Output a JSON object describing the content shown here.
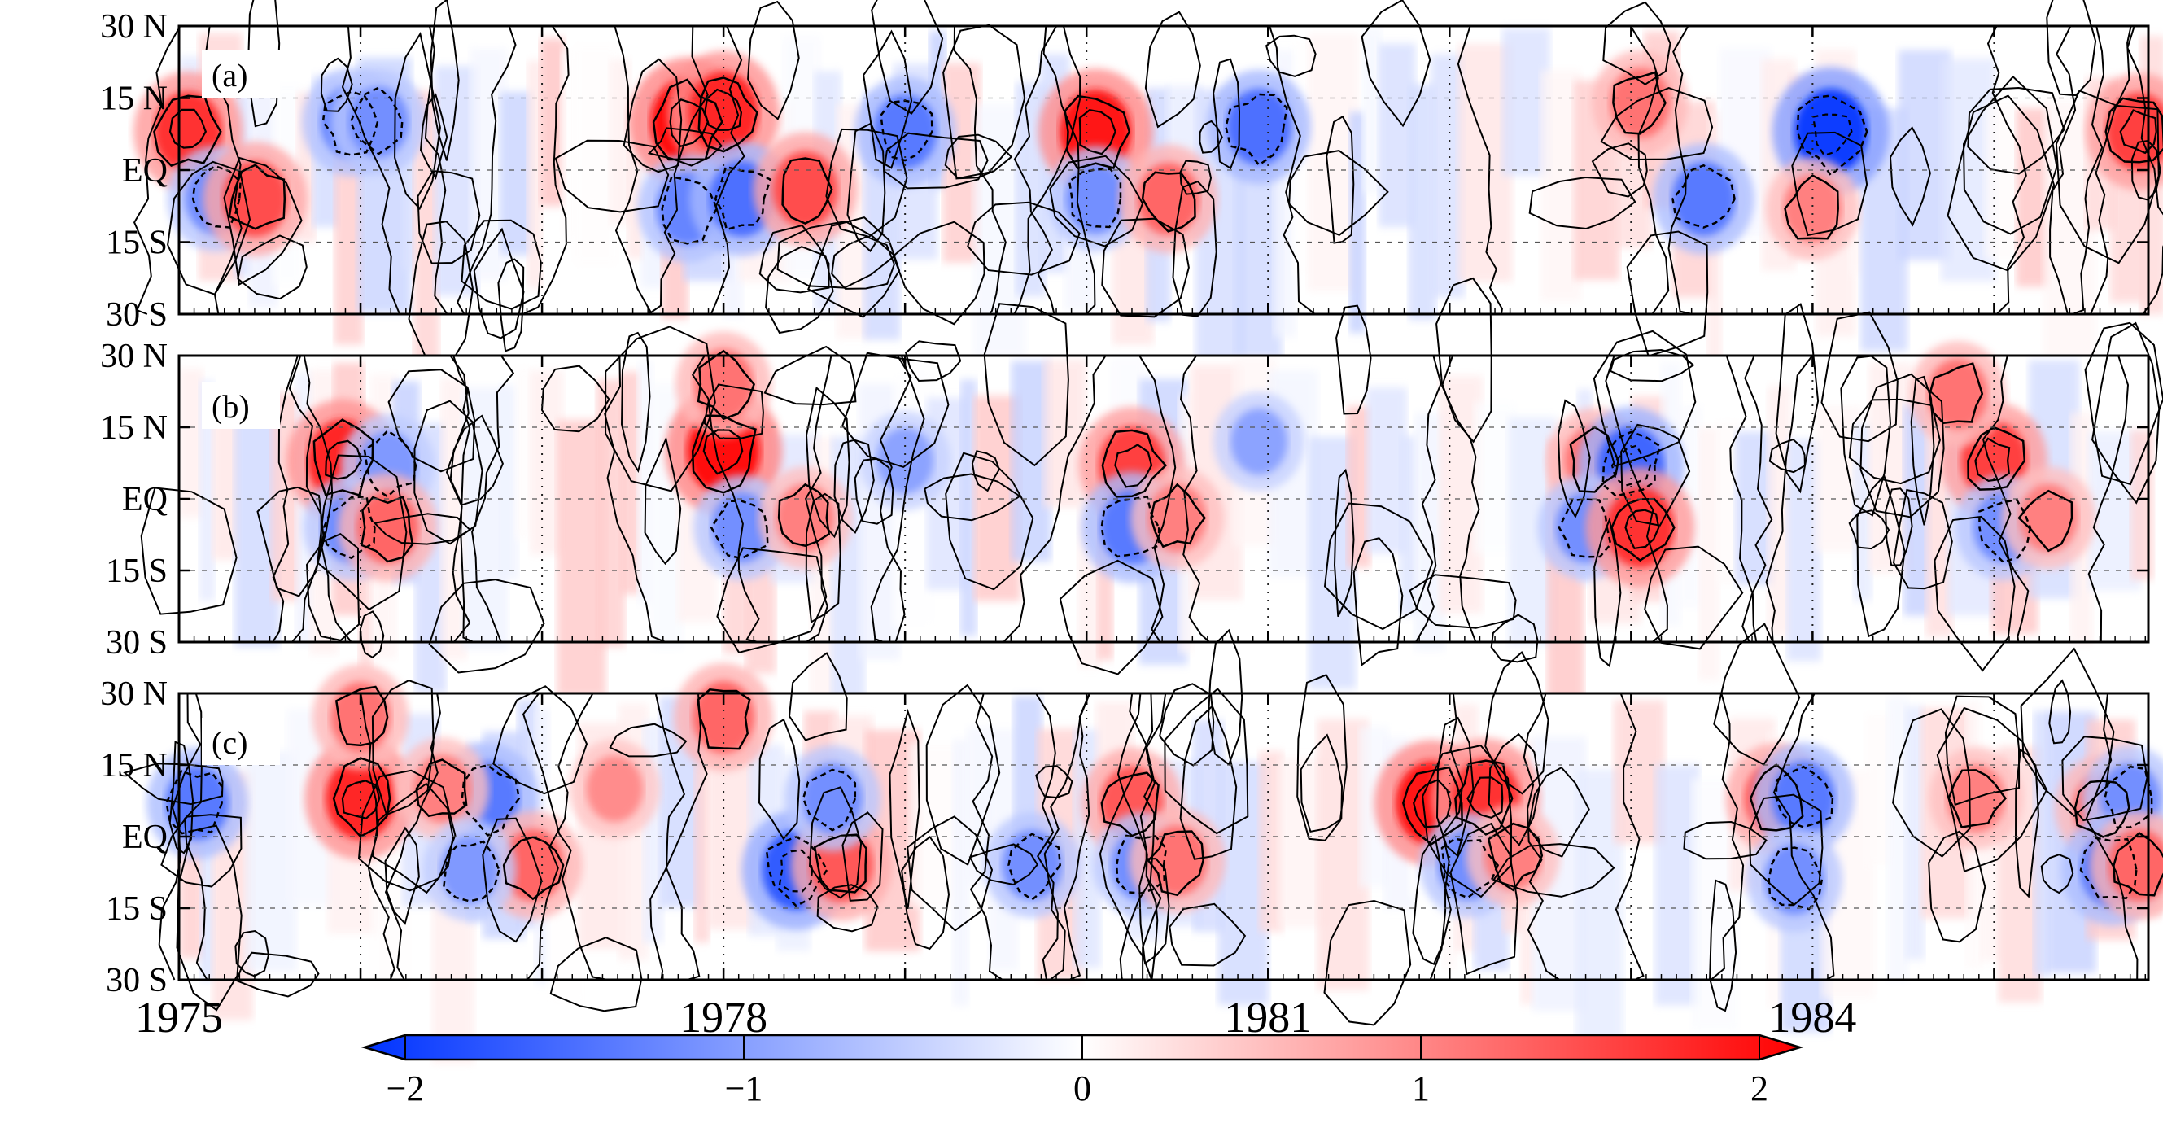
{
  "chart_data": [
    {
      "type": "heatmap",
      "panel_label": "(a)",
      "y_tick_labels": [
        "30 N",
        "15 N",
        "EQ",
        "15 S",
        "30 S"
      ],
      "ylim": [
        -30,
        30
      ],
      "xlim": [
        1975,
        1985.85
      ],
      "anomaly_events": [
        {
          "year": 1975.05,
          "lat": 8,
          "value": 1.6
        },
        {
          "year": 1975.2,
          "lat": -6,
          "value": -1.1
        },
        {
          "year": 1975.42,
          "lat": -6,
          "value": 1.4
        },
        {
          "year": 1975.95,
          "lat": 10,
          "value": -1.2
        },
        {
          "year": 1976.1,
          "lat": 10,
          "value": -1.1
        },
        {
          "year": 1977.8,
          "lat": 10,
          "value": 1.9
        },
        {
          "year": 1978.0,
          "lat": 12,
          "value": 1.7
        },
        {
          "year": 1977.8,
          "lat": -8,
          "value": -1.2
        },
        {
          "year": 1978.1,
          "lat": -6,
          "value": -1.4
        },
        {
          "year": 1978.45,
          "lat": -4,
          "value": 1.4
        },
        {
          "year": 1979.0,
          "lat": 8,
          "value": -1.3
        },
        {
          "year": 1980.05,
          "lat": 8,
          "value": 1.8
        },
        {
          "year": 1980.05,
          "lat": -6,
          "value": -1.1
        },
        {
          "year": 1980.45,
          "lat": -6,
          "value": 1.2
        },
        {
          "year": 1980.95,
          "lat": 9,
          "value": -1.4
        },
        {
          "year": 1983.05,
          "lat": 14,
          "value": 1.1
        },
        {
          "year": 1983.4,
          "lat": -6,
          "value": -1.3
        },
        {
          "year": 1984.1,
          "lat": 8,
          "value": -1.9
        },
        {
          "year": 1984.0,
          "lat": -8,
          "value": 1.0
        },
        {
          "year": 1985.8,
          "lat": 8,
          "value": 1.5
        }
      ]
    },
    {
      "type": "heatmap",
      "panel_label": "(b)",
      "y_tick_labels": [
        "30 N",
        "15 N",
        "EQ",
        "15 S",
        "30 S"
      ],
      "ylim": [
        -30,
        30
      ],
      "xlim": [
        1975,
        1985.85
      ],
      "anomaly_events": [
        {
          "year": 1975.9,
          "lat": 8,
          "value": 1.7
        },
        {
          "year": 1976.15,
          "lat": 7,
          "value": -1.0
        },
        {
          "year": 1975.95,
          "lat": -6,
          "value": -1.1
        },
        {
          "year": 1976.15,
          "lat": -6,
          "value": 1.2
        },
        {
          "year": 1978.0,
          "lat": 10,
          "value": 1.9
        },
        {
          "year": 1978.0,
          "lat": 24,
          "value": 1.1
        },
        {
          "year": 1978.1,
          "lat": -6,
          "value": -1.1
        },
        {
          "year": 1978.45,
          "lat": -4,
          "value": 1.0
        },
        {
          "year": 1979.0,
          "lat": 8,
          "value": -0.9
        },
        {
          "year": 1980.25,
          "lat": 7,
          "value": 1.5
        },
        {
          "year": 1980.25,
          "lat": -6,
          "value": -1.3
        },
        {
          "year": 1980.5,
          "lat": -4,
          "value": 1.0
        },
        {
          "year": 1980.95,
          "lat": 12,
          "value": -0.9
        },
        {
          "year": 1982.8,
          "lat": 8,
          "value": 1.1
        },
        {
          "year": 1983.0,
          "lat": 7,
          "value": -1.5
        },
        {
          "year": 1982.75,
          "lat": -6,
          "value": -1.1
        },
        {
          "year": 1983.05,
          "lat": -6,
          "value": 1.6
        },
        {
          "year": 1985.0,
          "lat": 8,
          "value": 1.5
        },
        {
          "year": 1985.05,
          "lat": -6,
          "value": -1.1
        },
        {
          "year": 1985.3,
          "lat": -4,
          "value": 1.0
        },
        {
          "year": 1984.8,
          "lat": 22,
          "value": 1.1
        }
      ]
    },
    {
      "type": "heatmap",
      "panel_label": "(c)",
      "y_tick_labels": [
        "30 N",
        "15 N",
        "EQ",
        "15 S",
        "30 S"
      ],
      "ylim": [
        -30,
        30
      ],
      "xlim": [
        1975,
        1985.85
      ],
      "anomaly_events": [
        {
          "year": 1975.1,
          "lat": 7,
          "value": -1.3
        },
        {
          "year": 1976.0,
          "lat": 8,
          "value": 1.7
        },
        {
          "year": 1976.0,
          "lat": 25,
          "value": 1.1
        },
        {
          "year": 1976.7,
          "lat": 8,
          "value": -1.3
        },
        {
          "year": 1976.45,
          "lat": 10,
          "value": 1.0
        },
        {
          "year": 1976.95,
          "lat": -6,
          "value": 1.2
        },
        {
          "year": 1976.6,
          "lat": -7,
          "value": -1.0
        },
        {
          "year": 1977.4,
          "lat": 10,
          "value": 0.9
        },
        {
          "year": 1978.0,
          "lat": 25,
          "value": 1.2
        },
        {
          "year": 1978.4,
          "lat": -7,
          "value": -1.6
        },
        {
          "year": 1978.65,
          "lat": -6,
          "value": 1.3
        },
        {
          "year": 1978.6,
          "lat": 8,
          "value": -1.1
        },
        {
          "year": 1979.7,
          "lat": -6,
          "value": -1.1
        },
        {
          "year": 1980.25,
          "lat": 7,
          "value": 1.3
        },
        {
          "year": 1980.3,
          "lat": -6,
          "value": -1.1
        },
        {
          "year": 1980.5,
          "lat": -5,
          "value": 1.1
        },
        {
          "year": 1981.9,
          "lat": 7,
          "value": 1.8
        },
        {
          "year": 1982.2,
          "lat": 8,
          "value": 1.6
        },
        {
          "year": 1982.1,
          "lat": -6,
          "value": -1.1
        },
        {
          "year": 1982.35,
          "lat": -4,
          "value": 1.0
        },
        {
          "year": 1983.8,
          "lat": 8,
          "value": 1.3
        },
        {
          "year": 1983.95,
          "lat": 8,
          "value": -1.3
        },
        {
          "year": 1983.9,
          "lat": -9,
          "value": -1.1
        },
        {
          "year": 1984.9,
          "lat": 8,
          "value": 1.0
        },
        {
          "year": 1985.6,
          "lat": 6,
          "value": 1.1
        },
        {
          "year": 1985.75,
          "lat": 8,
          "value": -1.1
        },
        {
          "year": 1985.65,
          "lat": -7,
          "value": -1.3
        },
        {
          "year": 1985.8,
          "lat": -6,
          "value": 1.2
        }
      ]
    }
  ],
  "x_axis": {
    "tick_labels": [
      "1975",
      "1978",
      "1981",
      "1984"
    ],
    "tick_years": [
      1975,
      1978,
      1981,
      1984
    ]
  },
  "colorbar": {
    "tick_labels": [
      "−2",
      "−1",
      "0",
      "1",
      "2"
    ],
    "tick_values": [
      -2,
      -1,
      0,
      1,
      2
    ],
    "range": [
      -2,
      2
    ],
    "colors": {
      "low": "#0033ff",
      "mid": "#ffffff",
      "high": "#ff0000"
    }
  }
}
